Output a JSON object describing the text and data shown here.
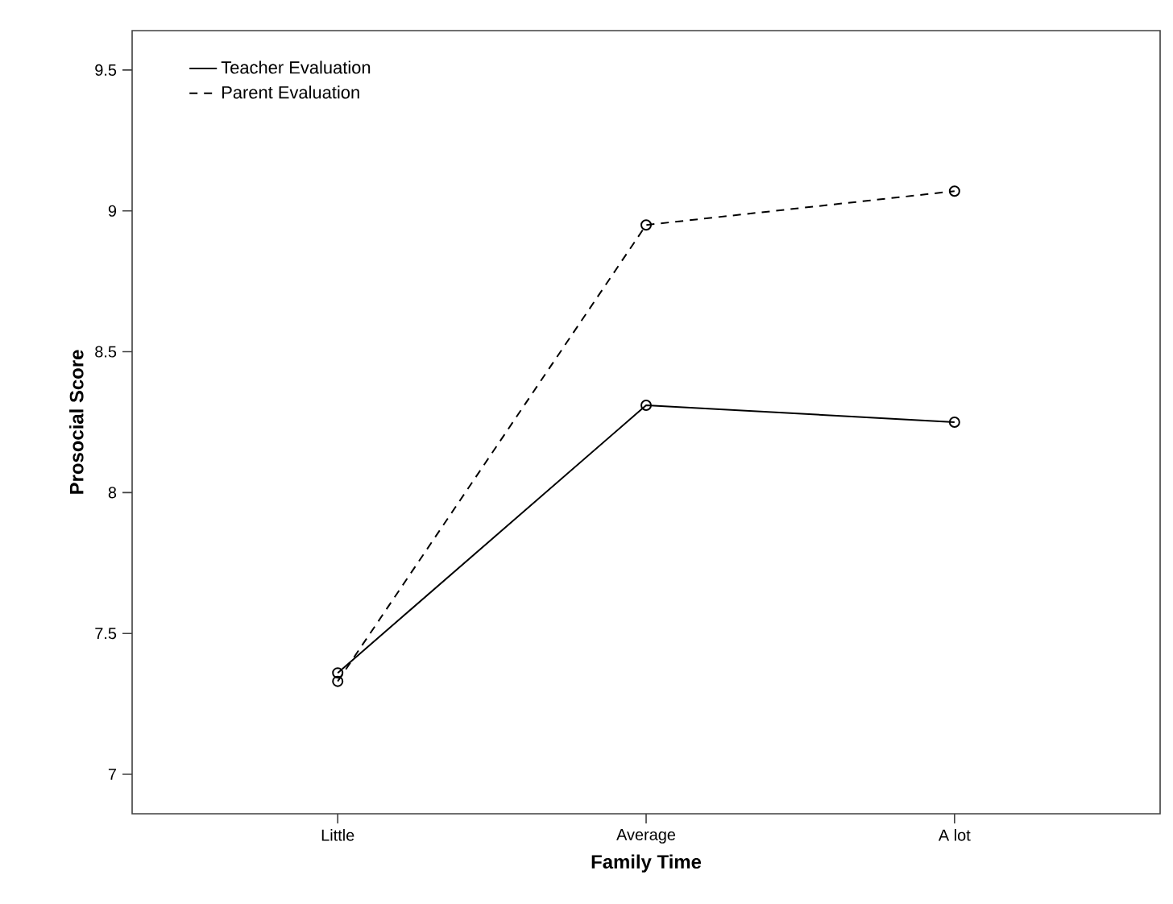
{
  "chart_data": {
    "type": "line",
    "xlabel": "Family Time",
    "ylabel": "Prosocial Score",
    "categories": [
      "Little",
      "Average",
      "A lot"
    ],
    "series": [
      {
        "name": "Teacher Evaluation",
        "color": "#000000",
        "line_style": "solid",
        "values": [
          7.36,
          8.31,
          8.25
        ]
      },
      {
        "name": "Parent Evaluation",
        "color": "#000000",
        "line_style": "dashed",
        "values": [
          7.33,
          8.95,
          9.07
        ]
      }
    ],
    "ylim": [
      6.86,
      9.64
    ],
    "yticks": [
      7,
      7.5,
      8,
      8.5,
      9,
      9.5
    ],
    "marker": "circle",
    "grid": false,
    "legend": "top left"
  }
}
